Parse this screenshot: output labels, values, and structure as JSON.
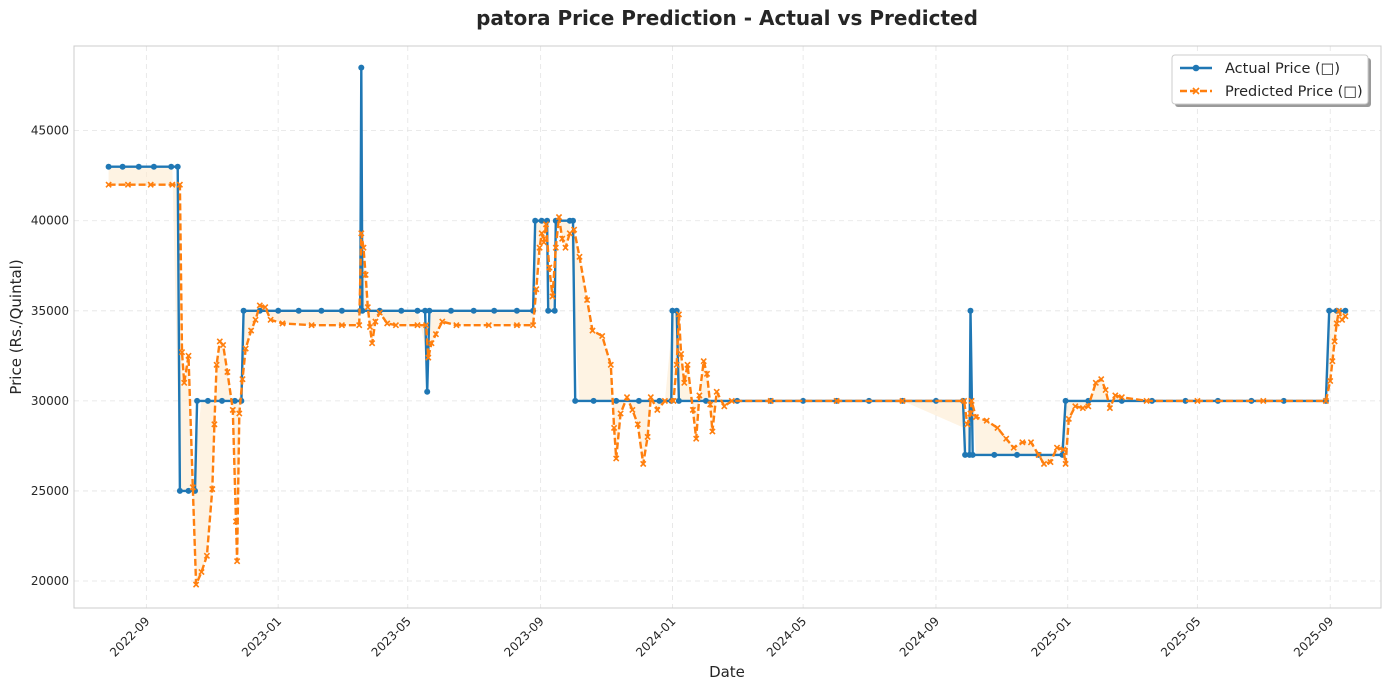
{
  "chart_data": {
    "type": "line",
    "title": "patora Price Prediction - Actual vs Predicted",
    "xlabel": "Date",
    "ylabel": "Price (Rs./Quintal)",
    "xlim": [
      "2022-06-26",
      "2025-10-18"
    ],
    "ylim": [
      18500,
      49700
    ],
    "x_ticks": [
      "2022-09",
      "2023-01",
      "2023-05",
      "2023-09",
      "2024-01",
      "2024-05",
      "2024-09",
      "2025-01",
      "2025-05",
      "2025-09"
    ],
    "y_ticks": [
      20000,
      25000,
      30000,
      35000,
      40000,
      45000
    ],
    "grid": true,
    "legend_position": "top-right",
    "colors": {
      "actual": "#1f77b4",
      "predicted": "#ff7f0e",
      "fill": "#fdebd0"
    },
    "series": [
      {
        "name": "Actual Price (□)",
        "marker": "circle",
        "style": "solid",
        "points": [
          [
            "2022-07-28",
            43000
          ],
          [
            "2022-08-10",
            43000
          ],
          [
            "2022-08-25",
            43000
          ],
          [
            "2022-09-08",
            43000
          ],
          [
            "2022-09-24",
            43000
          ],
          [
            "2022-09-30",
            43000
          ],
          [
            "2022-10-02",
            25000
          ],
          [
            "2022-10-10",
            25000
          ],
          [
            "2022-10-16",
            25000
          ],
          [
            "2022-10-18",
            30000
          ],
          [
            "2022-10-28",
            30000
          ],
          [
            "2022-11-10",
            30000
          ],
          [
            "2022-11-22",
            30000
          ],
          [
            "2022-11-28",
            30000
          ],
          [
            "2022-11-30",
            35000
          ],
          [
            "2022-12-15",
            35000
          ],
          [
            "2023-01-01",
            35000
          ],
          [
            "2023-01-20",
            35000
          ],
          [
            "2023-02-10",
            35000
          ],
          [
            "2023-03-01",
            35000
          ],
          [
            "2023-03-18",
            35000
          ],
          [
            "2023-03-19",
            48500
          ],
          [
            "2023-03-20",
            35000
          ],
          [
            "2023-04-05",
            35000
          ],
          [
            "2023-04-25",
            35000
          ],
          [
            "2023-05-10",
            35000
          ],
          [
            "2023-05-17",
            35000
          ],
          [
            "2023-05-19",
            30500
          ],
          [
            "2023-05-21",
            35000
          ],
          [
            "2023-06-10",
            35000
          ],
          [
            "2023-07-01",
            35000
          ],
          [
            "2023-07-20",
            35000
          ],
          [
            "2023-08-10",
            35000
          ],
          [
            "2023-08-25",
            35000
          ],
          [
            "2023-08-27",
            40000
          ],
          [
            "2023-09-02",
            40000
          ],
          [
            "2023-09-07",
            40000
          ],
          [
            "2023-09-08",
            35000
          ],
          [
            "2023-09-14",
            35000
          ],
          [
            "2023-09-15",
            40000
          ],
          [
            "2023-09-28",
            40000
          ],
          [
            "2023-10-01",
            40000
          ],
          [
            "2023-10-03",
            30000
          ],
          [
            "2023-10-20",
            30000
          ],
          [
            "2023-11-10",
            30000
          ],
          [
            "2023-12-01",
            30000
          ],
          [
            "2023-12-20",
            30000
          ],
          [
            "2023-12-31",
            30000
          ],
          [
            "2024-01-01",
            35000
          ],
          [
            "2024-01-05",
            35000
          ],
          [
            "2024-01-07",
            30000
          ],
          [
            "2024-02-01",
            30000
          ],
          [
            "2024-03-01",
            30000
          ],
          [
            "2024-04-01",
            30000
          ],
          [
            "2024-05-01",
            30000
          ],
          [
            "2024-06-01",
            30000
          ],
          [
            "2024-07-01",
            30000
          ],
          [
            "2024-08-01",
            30000
          ],
          [
            "2024-09-01",
            30000
          ],
          [
            "2024-09-26",
            30000
          ],
          [
            "2024-09-28",
            27000
          ],
          [
            "2024-10-02",
            27000
          ],
          [
            "2024-10-03",
            35000
          ],
          [
            "2024-10-05",
            27000
          ],
          [
            "2024-10-25",
            27000
          ],
          [
            "2024-11-15",
            27000
          ],
          [
            "2024-12-05",
            27000
          ],
          [
            "2024-12-27",
            27000
          ],
          [
            "2024-12-30",
            30000
          ],
          [
            "2025-01-20",
            30000
          ],
          [
            "2025-02-20",
            30000
          ],
          [
            "2025-03-20",
            30000
          ],
          [
            "2025-04-20",
            30000
          ],
          [
            "2025-05-20",
            30000
          ],
          [
            "2025-06-20",
            30000
          ],
          [
            "2025-07-20",
            30000
          ],
          [
            "2025-08-28",
            30000
          ],
          [
            "2025-08-31",
            35000
          ],
          [
            "2025-09-07",
            35000
          ],
          [
            "2025-09-15",
            35000
          ]
        ]
      },
      {
        "name": "Predicted Price (□)",
        "marker": "x",
        "style": "dashed",
        "points": [
          [
            "2022-07-28",
            42000
          ],
          [
            "2022-08-15",
            42000
          ],
          [
            "2022-09-05",
            42000
          ],
          [
            "2022-09-25",
            42000
          ],
          [
            "2022-10-02",
            42000
          ],
          [
            "2022-10-04",
            32700
          ],
          [
            "2022-10-06",
            31000
          ],
          [
            "2022-10-10",
            32500
          ],
          [
            "2022-10-14",
            25200
          ],
          [
            "2022-10-17",
            19800
          ],
          [
            "2022-10-22",
            20500
          ],
          [
            "2022-10-27",
            21400
          ],
          [
            "2022-11-01",
            25100
          ],
          [
            "2022-11-03",
            28700
          ],
          [
            "2022-11-05",
            32000
          ],
          [
            "2022-11-08",
            33300
          ],
          [
            "2022-11-11",
            33100
          ],
          [
            "2022-11-15",
            31600
          ],
          [
            "2022-11-20",
            29500
          ],
          [
            "2022-11-23",
            23300
          ],
          [
            "2022-11-24",
            21100
          ],
          [
            "2022-11-26",
            29300
          ],
          [
            "2022-11-29",
            31200
          ],
          [
            "2022-12-02",
            32900
          ],
          [
            "2022-12-07",
            33900
          ],
          [
            "2022-12-11",
            34500
          ],
          [
            "2022-12-15",
            35300
          ],
          [
            "2022-12-20",
            35200
          ],
          [
            "2022-12-25",
            34500
          ],
          [
            "2023-01-05",
            34300
          ],
          [
            "2023-02-01",
            34200
          ],
          [
            "2023-03-01",
            34200
          ],
          [
            "2023-03-17",
            34200
          ],
          [
            "2023-03-19",
            39300
          ],
          [
            "2023-03-21",
            38500
          ],
          [
            "2023-03-23",
            37000
          ],
          [
            "2023-03-25",
            35200
          ],
          [
            "2023-03-27",
            34100
          ],
          [
            "2023-03-29",
            33200
          ],
          [
            "2023-04-01",
            34400
          ],
          [
            "2023-04-05",
            34900
          ],
          [
            "2023-04-12",
            34300
          ],
          [
            "2023-04-20",
            34200
          ],
          [
            "2023-05-10",
            34200
          ],
          [
            "2023-05-18",
            34200
          ],
          [
            "2023-05-20",
            32400
          ],
          [
            "2023-05-23",
            33200
          ],
          [
            "2023-05-27",
            33700
          ],
          [
            "2023-06-02",
            34400
          ],
          [
            "2023-06-15",
            34200
          ],
          [
            "2023-07-15",
            34200
          ],
          [
            "2023-08-10",
            34200
          ],
          [
            "2023-08-25",
            34200
          ],
          [
            "2023-08-28",
            36200
          ],
          [
            "2023-08-31",
            38500
          ],
          [
            "2023-09-02",
            39300
          ],
          [
            "2023-09-04",
            38800
          ],
          [
            "2023-09-06",
            39800
          ],
          [
            "2023-09-09",
            37400
          ],
          [
            "2023-09-12",
            35800
          ],
          [
            "2023-09-15",
            38500
          ],
          [
            "2023-09-18",
            40200
          ],
          [
            "2023-09-21",
            39000
          ],
          [
            "2023-09-24",
            38500
          ],
          [
            "2023-09-28",
            39300
          ],
          [
            "2023-10-02",
            39500
          ],
          [
            "2023-10-07",
            38000
          ],
          [
            "2023-10-14",
            35600
          ],
          [
            "2023-10-19",
            33900
          ],
          [
            "2023-10-28",
            33600
          ],
          [
            "2023-11-05",
            32000
          ],
          [
            "2023-11-08",
            28500
          ],
          [
            "2023-11-10",
            26800
          ],
          [
            "2023-11-14",
            29300
          ],
          [
            "2023-11-20",
            30200
          ],
          [
            "2023-11-25",
            29500
          ],
          [
            "2023-11-30",
            28700
          ],
          [
            "2023-12-05",
            26500
          ],
          [
            "2023-12-09",
            28000
          ],
          [
            "2023-12-12",
            30200
          ],
          [
            "2023-12-18",
            29500
          ],
          [
            "2023-12-25",
            30000
          ],
          [
            "2024-01-02",
            30000
          ],
          [
            "2024-01-05",
            32000
          ],
          [
            "2024-01-07",
            34800
          ],
          [
            "2024-01-09",
            32600
          ],
          [
            "2024-01-12",
            31000
          ],
          [
            "2024-01-15",
            32000
          ],
          [
            "2024-01-20",
            29500
          ],
          [
            "2024-01-23",
            27900
          ],
          [
            "2024-01-26",
            30300
          ],
          [
            "2024-01-30",
            32200
          ],
          [
            "2024-02-02",
            31500
          ],
          [
            "2024-02-05",
            29800
          ],
          [
            "2024-02-07",
            28300
          ],
          [
            "2024-02-11",
            30500
          ],
          [
            "2024-02-18",
            29700
          ],
          [
            "2024-02-25",
            30000
          ],
          [
            "2024-04-01",
            30000
          ],
          [
            "2024-06-01",
            30000
          ],
          [
            "2024-08-01",
            30000
          ],
          [
            "2024-09-27",
            30000
          ],
          [
            "2024-09-30",
            28700
          ],
          [
            "2024-10-03",
            29300
          ],
          [
            "2024-10-04",
            30000
          ],
          [
            "2024-10-08",
            29100
          ],
          [
            "2024-10-18",
            28900
          ],
          [
            "2024-10-28",
            28500
          ],
          [
            "2024-11-05",
            27900
          ],
          [
            "2024-11-12",
            27400
          ],
          [
            "2024-11-20",
            27700
          ],
          [
            "2024-11-28",
            27700
          ],
          [
            "2024-12-05",
            27000
          ],
          [
            "2024-12-10",
            26500
          ],
          [
            "2024-12-16",
            26600
          ],
          [
            "2024-12-22",
            27400
          ],
          [
            "2024-12-28",
            27300
          ],
          [
            "2024-12-30",
            26500
          ],
          [
            "2025-01-02",
            29000
          ],
          [
            "2025-01-08",
            29700
          ],
          [
            "2025-01-15",
            29600
          ],
          [
            "2025-01-20",
            29700
          ],
          [
            "2025-01-27",
            31000
          ],
          [
            "2025-02-01",
            31200
          ],
          [
            "2025-02-05",
            30600
          ],
          [
            "2025-02-09",
            29600
          ],
          [
            "2025-02-14",
            30300
          ],
          [
            "2025-02-20",
            30200
          ],
          [
            "2025-03-15",
            30000
          ],
          [
            "2025-05-01",
            30000
          ],
          [
            "2025-07-01",
            30000
          ],
          [
            "2025-08-28",
            30000
          ],
          [
            "2025-09-01",
            31100
          ],
          [
            "2025-09-03",
            32200
          ],
          [
            "2025-09-05",
            33300
          ],
          [
            "2025-09-07",
            34300
          ],
          [
            "2025-09-09",
            35000
          ],
          [
            "2025-09-12",
            34500
          ],
          [
            "2025-09-15",
            34700
          ]
        ]
      }
    ]
  }
}
